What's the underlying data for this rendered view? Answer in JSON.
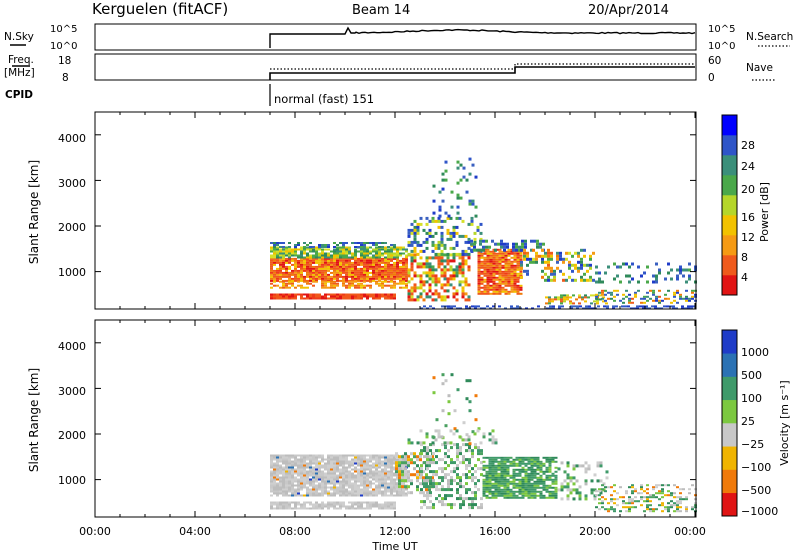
{
  "header": {
    "station": "Kerguelen (fitACF)",
    "beam": "Beam 14",
    "date": "20/Apr/2014"
  },
  "noise_panel": {
    "left_label": "N.Sky",
    "right_label": "N.Search",
    "ticks_left": [
      "10^5",
      "10^0"
    ],
    "ticks_right": [
      "10^5",
      "10^0"
    ]
  },
  "freq_panel": {
    "left_label_1": "Freq.",
    "left_label_2": "[MHz]",
    "right_label": "Nave",
    "ticks_left": [
      "18",
      "8"
    ],
    "ticks_right": [
      "60",
      "0"
    ]
  },
  "cpid": {
    "label": "CPID",
    "value": "normal (fast) 151"
  },
  "chart_data": [
    {
      "type": "heatmap",
      "name": "power",
      "ylabel": "Slant Range [km]",
      "ylim": [
        180,
        4500
      ],
      "yticks": [
        "1000",
        "2000",
        "3000",
        "4000"
      ],
      "xlim_hours": [
        0,
        24
      ],
      "colorbar_label": "Power [dB]",
      "colorbar_ticks": [
        "4",
        "8",
        "12",
        "16",
        "20",
        "24",
        "28"
      ],
      "colorbar_colors": [
        "#0000ff",
        "#2f55c8",
        "#3b8f7a",
        "#4aa84a",
        "#b5d62a",
        "#f2c200",
        "#f59a14",
        "#ef5a1c",
        "#e11414"
      ]
    },
    {
      "type": "heatmap",
      "name": "velocity",
      "ylabel": "Slant Range [km]",
      "ylim": [
        180,
        4500
      ],
      "yticks": [
        "1000",
        "2000",
        "3000",
        "4000"
      ],
      "xlim_hours": [
        0,
        24
      ],
      "colorbar_label": "Velocity [m s⁻¹]",
      "colorbar_ticks": [
        "1000",
        "500",
        "100",
        "25",
        "−25",
        "−100",
        "−500",
        "−1000"
      ],
      "colorbar_colors": [
        "#1f3cc8",
        "#2b72b4",
        "#3f9a6a",
        "#7cc840",
        "#c8c8c8",
        "#f0b400",
        "#f07a0a",
        "#e01414"
      ]
    }
  ],
  "xaxis": {
    "label": "Time UT",
    "ticks": [
      "00:00",
      "04:00",
      "08:00",
      "12:00",
      "16:00",
      "20:00",
      "00:00"
    ]
  }
}
